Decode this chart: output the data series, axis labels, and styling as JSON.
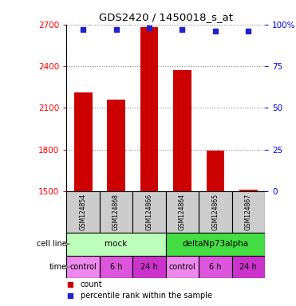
{
  "title": "GDS2420 / 1450018_s_at",
  "samples": [
    "GSM124854",
    "GSM124868",
    "GSM124866",
    "GSM124864",
    "GSM124865",
    "GSM124867"
  ],
  "counts": [
    2210,
    2160,
    2680,
    2370,
    1790,
    1510
  ],
  "percentiles": [
    97,
    97,
    98,
    97,
    96,
    96
  ],
  "ylim_left": [
    1500,
    2700
  ],
  "ylim_right": [
    0,
    100
  ],
  "yticks_left": [
    1500,
    1800,
    2100,
    2400,
    2700
  ],
  "yticks_right": [
    0,
    25,
    50,
    75,
    100
  ],
  "ytick_labels_right": [
    "0",
    "25",
    "50",
    "75",
    "100%"
  ],
  "bar_color": "#cc0000",
  "bar_width": 0.55,
  "dot_color": "#2222cc",
  "dot_size": 5,
  "cell_line_groups": [
    {
      "label": "mock",
      "span": [
        0,
        3
      ],
      "color": "#bbffbb"
    },
    {
      "label": "deltaNp73alpha",
      "span": [
        3,
        6
      ],
      "color": "#44dd44"
    }
  ],
  "time_groups": [
    {
      "label": "control",
      "span": [
        0,
        1
      ],
      "color": "#ee88ee"
    },
    {
      "label": "6 h",
      "span": [
        1,
        2
      ],
      "color": "#dd55dd"
    },
    {
      "label": "24 h",
      "span": [
        2,
        3
      ],
      "color": "#cc33cc"
    },
    {
      "label": "control",
      "span": [
        3,
        4
      ],
      "color": "#ee88ee"
    },
    {
      "label": "6 h",
      "span": [
        4,
        5
      ],
      "color": "#dd55dd"
    },
    {
      "label": "24 h",
      "span": [
        5,
        6
      ],
      "color": "#cc33cc"
    }
  ],
  "legend_count_color": "#cc0000",
  "legend_dot_color": "#2222cc",
  "background_color": "#ffffff",
  "grid_linestyle": "dotted",
  "grid_color": "#888888",
  "sample_bg": "#cccccc"
}
